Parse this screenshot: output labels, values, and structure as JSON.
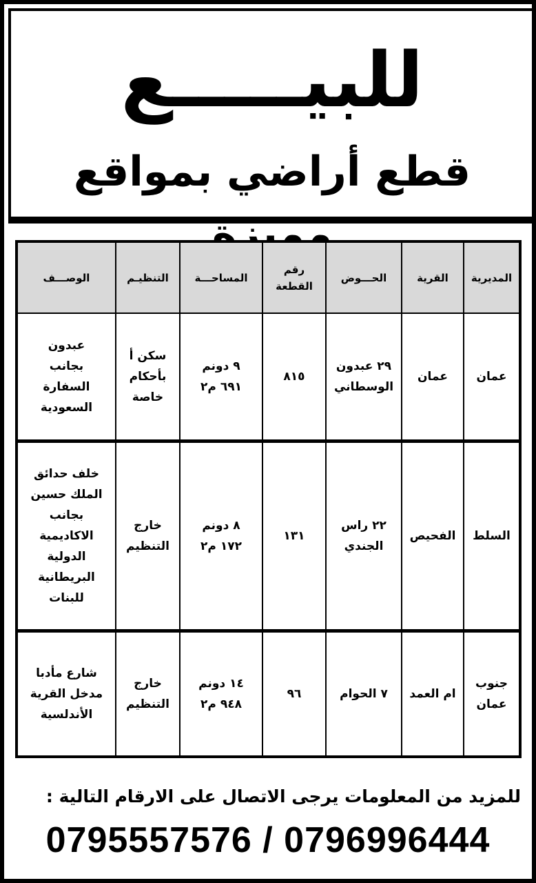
{
  "title": "للبيـــــع",
  "subtitle": "قطع أراضي بمواقع مميزة",
  "table": {
    "headers": [
      "المديرية",
      "القرية",
      "الحـــوض",
      "رقم\nالقطعة",
      "المساحـــة",
      "التنظيـم",
      "الوصـــف"
    ],
    "rows": [
      [
        "عمان",
        "عمان",
        "٢٩ عبدون\nالوسطاني",
        "٨١٥",
        "٩ دونم\n٦٩١ م٢",
        "سكن أ\nبأحكام\nخاصة",
        "عبدون\nبجانب\nالسفارة\nالسعودية"
      ],
      [
        "السلط",
        "الفحيص",
        "٢٢ راس\nالجندي",
        "١٣١",
        "٨ دونم\n١٧٢ م٢",
        "خارج\nالتنظيم",
        "خلف حدائق\nالملك حسين\nبجانب\nالاكاديمية\nالدولية\nالبريطانية\nللبنات"
      ],
      [
        "جنوب\nعمان",
        "ام العمد",
        "٧ الحوام",
        "٩٦",
        "١٤ دونم\n٩٤٨ م٢",
        "خارج\nالتنظيم",
        "شارع مأدبا\nمدخل القرية\nالأندلسية"
      ]
    ]
  },
  "contact_text": "للمزيد من المعلومات يرجى الاتصال على الارقام التالية :",
  "phones": "0795557576 / 0796996444"
}
